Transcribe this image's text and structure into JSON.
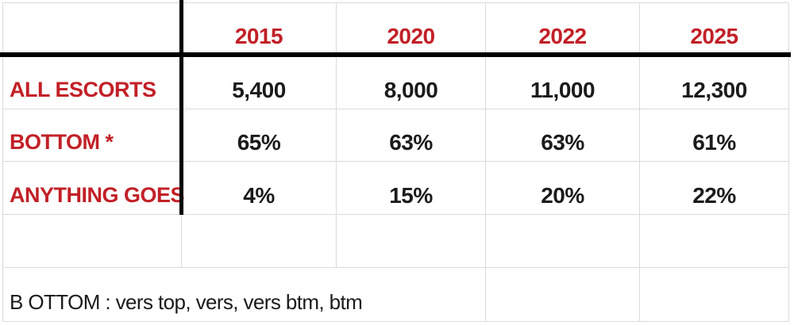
{
  "colors": {
    "accent_red": "#c22027",
    "text_black": "#1b1b1b",
    "gridline": "#dadada",
    "divider_black": "#000000"
  },
  "table": {
    "columns": [
      "2015",
      "2020",
      "2022",
      "2025"
    ],
    "rows": [
      {
        "label": "ALL ESCORTS",
        "values": [
          "5,400",
          "8,000",
          "11,000",
          "12,300"
        ]
      },
      {
        "label": "BOTTOM *",
        "values": [
          "65%",
          "63%",
          "63%",
          "61%"
        ]
      },
      {
        "label": "ANYTHING GOES",
        "values": [
          "4%",
          "15%",
          "20%",
          "22%"
        ]
      }
    ],
    "footnote": "B OTTOM : vers top, vers, vers btm, btm"
  },
  "chart_data": {
    "type": "table",
    "title": "",
    "categories": [
      "2015",
      "2020",
      "2022",
      "2025"
    ],
    "series": [
      {
        "name": "ALL ESCORTS",
        "values": [
          5400,
          8000,
          11000,
          12300
        ]
      },
      {
        "name": "BOTTOM *",
        "values": [
          "65%",
          "63%",
          "63%",
          "61%"
        ]
      },
      {
        "name": "ANYTHING GOES",
        "values": [
          "4%",
          "15%",
          "20%",
          "22%"
        ]
      }
    ],
    "footnote": "B OTTOM : vers top, vers, vers btm, btm",
    "layout_hints": {
      "header_text_color": "#c22027",
      "row_label_color": "#c22027",
      "value_color": "#1b1b1b",
      "thick_border_under_header": true,
      "thick_border_after_label_column": true,
      "gridlines": true
    }
  }
}
